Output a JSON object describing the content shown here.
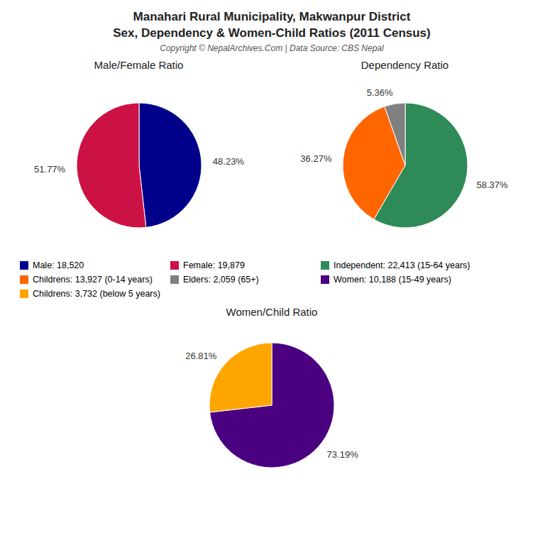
{
  "title": "Manahari Rural Municipality, Makwanpur District",
  "subtitle": "Sex, Dependency & Women-Child Ratios (2011 Census)",
  "annotations": [
    "Copyright © NepalArchives.Com | Data Source: CBS Nepal"
  ],
  "chart_data": [
    {
      "type": "pie",
      "title": "Male/Female Ratio",
      "categories": [
        "Male: 18,520",
        "Female: 19,879"
      ],
      "values": [
        48.23,
        51.77
      ],
      "value_labels": [
        "48.23%",
        "51.77%"
      ],
      "colors": [
        "#00008B",
        "#CC1144"
      ],
      "data_labels": true
    },
    {
      "type": "pie",
      "title": "Dependency Ratio",
      "categories": [
        "Independent: 22,413 (15-64 years)",
        "Childrens: 13,927 (0-14 years)",
        "Elders: 2,059 (65+)"
      ],
      "values": [
        58.37,
        36.27,
        5.36
      ],
      "value_labels": [
        "58.37%",
        "36.27%",
        "5.36%"
      ],
      "colors": [
        "#2E8B57",
        "#FF6600",
        "#808080"
      ],
      "data_labels": true
    },
    {
      "type": "pie",
      "title": "Women/Child Ratio",
      "categories": [
        "Women: 10,188 (15-49 years)",
        "Childrens: 3,732 (below 5 years)"
      ],
      "values": [
        73.19,
        26.81
      ],
      "value_labels": [
        "73.19%",
        "26.81%"
      ],
      "colors": [
        "#4B0082",
        "#FFA500"
      ],
      "data_labels": true
    }
  ]
}
